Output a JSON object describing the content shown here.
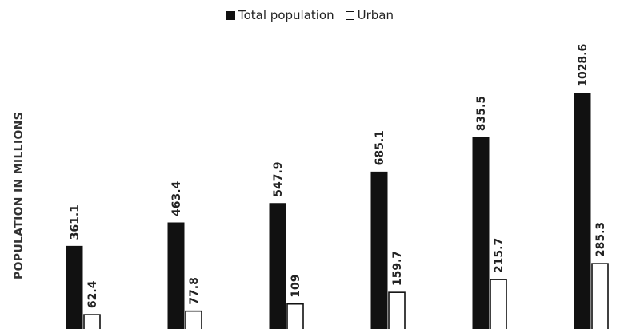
{
  "chart_data": {
    "type": "bar",
    "categories": [
      "",
      "",
      "",
      "",
      "",
      ""
    ],
    "series": [
      {
        "name": "Total population",
        "values": [
          361.1,
          463.4,
          547.9,
          685.1,
          835.5,
          1028.6
        ],
        "labels": [
          "361.1",
          "463.4",
          "547.9",
          "685.1",
          "835.5",
          "1028.6"
        ],
        "color": "#111111"
      },
      {
        "name": "Urban",
        "values": [
          62.4,
          77.8,
          109,
          159.7,
          215.7,
          285.3
        ],
        "labels": [
          "62.4",
          "77.8",
          "109",
          "159.7",
          "215.7",
          "285.3"
        ],
        "color": "#ffffff"
      }
    ],
    "ylabel": "POPULATION IN MILLIONS",
    "xlabel": "",
    "legend_position": "top-center",
    "grid": false
  }
}
